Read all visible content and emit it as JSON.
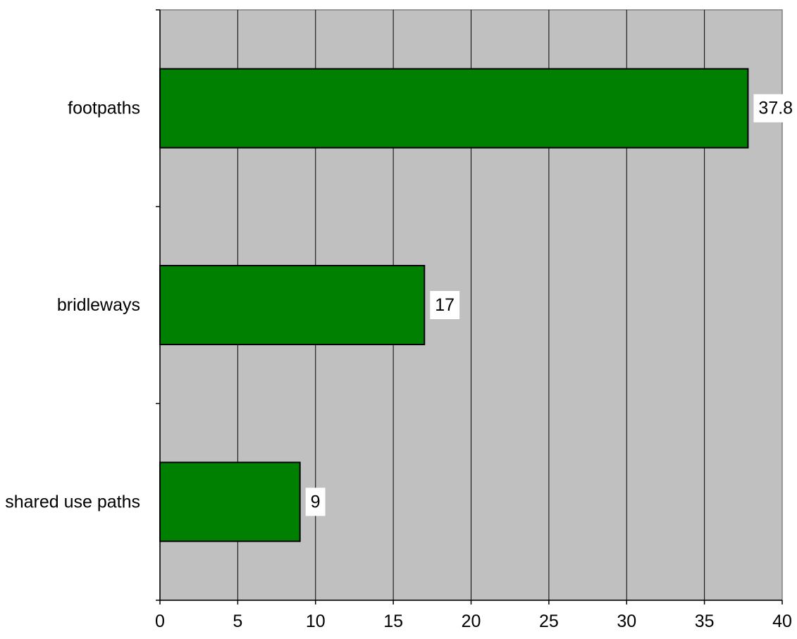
{
  "chart_data": {
    "type": "bar",
    "orientation": "horizontal",
    "categories": [
      "footpaths",
      "bridleways",
      "shared use paths"
    ],
    "values": [
      37.8,
      17,
      9
    ],
    "data_labels": [
      "37.8",
      "17",
      "9"
    ],
    "xlim": [
      0,
      40
    ],
    "x_ticks": [
      0,
      5,
      10,
      15,
      20,
      25,
      30,
      35,
      40
    ],
    "x_tick_labels": [
      "0",
      "5",
      "10",
      "15",
      "20",
      "25",
      "30",
      "35",
      "40"
    ],
    "grid": "vertical",
    "legend": "none",
    "colors": {
      "plot_background": "#c0c0c0",
      "bar_fill": "#008000",
      "bar_stroke": "#000000",
      "gridline": "#000000",
      "label_background": "#ffffff"
    }
  }
}
